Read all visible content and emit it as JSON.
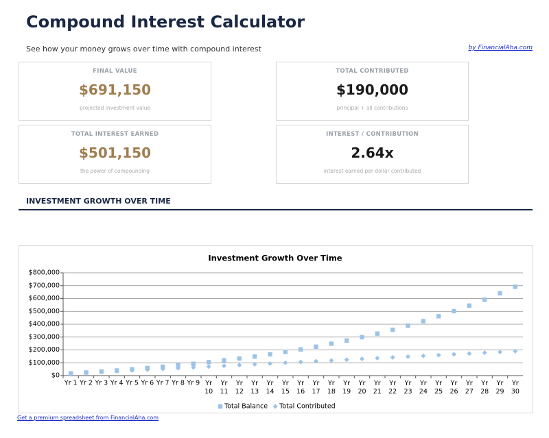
{
  "header": {
    "title": "Compound Interest Calculator",
    "subtitle": "See how your money grows over time with compound interest",
    "link": "by FinancialAha.com"
  },
  "cards": [
    {
      "label": "FINAL VALUE",
      "value": "$691,150",
      "note": "projected investment value",
      "color": "#a07d4f"
    },
    {
      "label": "TOTAL CONTRIBUTED",
      "value": "$190,000",
      "note": "principal + all contributions",
      "color": "#1a1a1a"
    },
    {
      "label": "TOTAL INTEREST EARNED",
      "value": "$501,150",
      "note": "the power of compounding",
      "color": "#a07d4f"
    },
    {
      "label": "INTEREST / CONTRIBUTION",
      "value": "2.64x",
      "note": "interest earned per dollar contributed",
      "color": "#1a1a1a"
    }
  ],
  "section_title": "INVESTMENT GROWTH OVER TIME",
  "chart_data": {
    "type": "line",
    "markers_only": true,
    "title": "Investment Growth Over Time",
    "categories": [
      "Yr 1",
      "Yr 2",
      "Yr 3",
      "Yr 4",
      "Yr 5",
      "Yr 6",
      "Yr 7",
      "Yr 8",
      "Yr 9",
      "Yr 10",
      "Yr 11",
      "Yr 12",
      "Yr 13",
      "Yr 14",
      "Yr 15",
      "Yr 16",
      "Yr 17",
      "Yr 18",
      "Yr 19",
      "Yr 20",
      "Yr 21",
      "Yr 22",
      "Yr 23",
      "Yr 24",
      "Yr 25",
      "Yr 26",
      "Yr 27",
      "Yr 28",
      "Yr 29",
      "Yr 30"
    ],
    "series": [
      {
        "name": "Total Balance",
        "color": "#9dc3e6",
        "marker": "square",
        "values": [
          17000,
          24000,
          32000,
          40000,
          49000,
          59000,
          69000,
          80000,
          92000,
          105000,
          119000,
          133000,
          149000,
          166000,
          185000,
          204000,
          225000,
          248000,
          273000,
          299000,
          327000,
          357000,
          389000,
          424000,
          462000,
          502000,
          545000,
          591000,
          641000,
          691150
        ]
      },
      {
        "name": "Total Contributed",
        "color": "#9dc3e6",
        "marker": "diamond",
        "values": [
          16000,
          22000,
          28000,
          34000,
          40000,
          46000,
          52000,
          58000,
          64000,
          70000,
          76000,
          82000,
          88000,
          94000,
          100000,
          106000,
          112000,
          118000,
          124000,
          130000,
          136000,
          142000,
          148000,
          154000,
          160000,
          166000,
          172000,
          178000,
          184000,
          190000
        ]
      }
    ],
    "ylim": [
      0,
      800000
    ],
    "yticks": [
      {
        "value": 0,
        "label": "$0"
      },
      {
        "value": 100000,
        "label": "$100,000"
      },
      {
        "value": 200000,
        "label": "$200,000"
      },
      {
        "value": 300000,
        "label": "$300,000"
      },
      {
        "value": 400000,
        "label": "$400,000"
      },
      {
        "value": 500000,
        "label": "$500,000"
      },
      {
        "value": 600000,
        "label": "$600,000"
      },
      {
        "value": 700000,
        "label": "$700,000"
      },
      {
        "value": 800000,
        "label": "$800,000"
      }
    ],
    "grid": true,
    "legend": "bottom"
  },
  "footer_link": "Get a premium spreadsheet from FinancialAha.com"
}
